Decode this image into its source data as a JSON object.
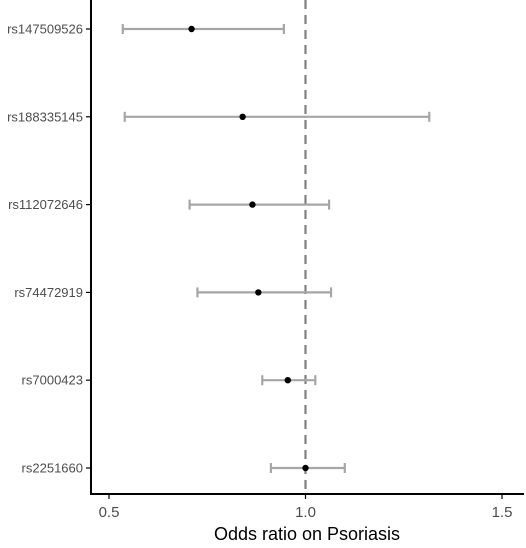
{
  "chart_data": {
    "type": "forest",
    "xlabel": "Odds ratio on Psoriasis",
    "ylabel": "",
    "xlim": [
      0.46,
      1.55
    ],
    "x_ticks": [
      {
        "value": 0.5,
        "label": "0.5"
      },
      {
        "value": 1.0,
        "label": "1.0"
      },
      {
        "value": 1.5,
        "label": "1.5"
      }
    ],
    "reference_line": 1.0,
    "grid": false,
    "categories": [
      "rs147509526",
      "rs188335145",
      "rs112072646",
      "rs74472919",
      "rs7000423",
      "rs2251660"
    ],
    "odds_ratio": [
      0.71,
      0.84,
      0.865,
      0.88,
      0.955,
      1.0
    ],
    "ci_lower": [
      0.535,
      0.54,
      0.705,
      0.725,
      0.89,
      0.912
    ],
    "ci_upper": [
      0.945,
      1.315,
      1.06,
      1.065,
      1.025,
      1.1
    ]
  },
  "colors": {
    "point": "#000000",
    "error_bar": "#a6a6a6",
    "reference_line": "#808080",
    "axis": "#000000"
  }
}
